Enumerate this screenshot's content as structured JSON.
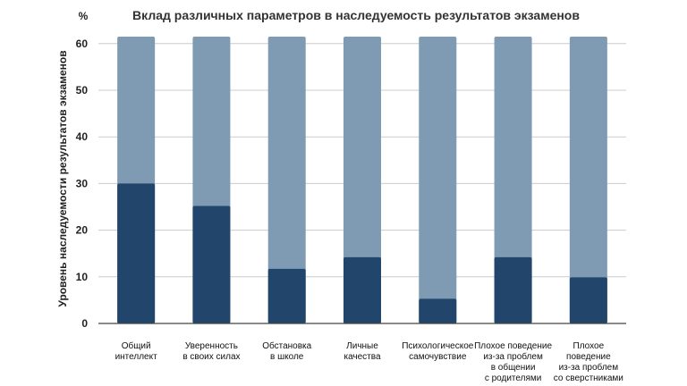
{
  "chart_data": {
    "type": "bar",
    "title": "Вклад различных параметров в наследуемость результатов экзаменов",
    "unit_label": "%",
    "ylabel": "Уровень наследуемости результатов экзаменов",
    "xlabel": "",
    "ylim": [
      0,
      62
    ],
    "yticks": [
      0,
      10,
      20,
      30,
      40,
      50,
      60
    ],
    "grid": true,
    "stacked_background_total": 61.5,
    "categories": [
      [
        "Общий",
        "интеллект"
      ],
      [
        "Уверенность",
        "в своих силах"
      ],
      [
        "Обстановка",
        "в школе"
      ],
      [
        "Личные",
        "качества"
      ],
      [
        "Психологическое",
        "самочувствие"
      ],
      [
        "Плохое поведение",
        "из-за проблем",
        "в общении",
        "с родителями"
      ],
      [
        "Плохое",
        "поведение",
        "из-за проблем",
        "со сверстниками"
      ]
    ],
    "values": [
      30,
      25.2,
      11.7,
      14.2,
      5.3,
      14.2,
      9.9
    ],
    "colors": {
      "value_bar": "#22456b",
      "background_bar": "#7e9bb3",
      "grid": "#cccccc",
      "axis": "#444444"
    }
  }
}
